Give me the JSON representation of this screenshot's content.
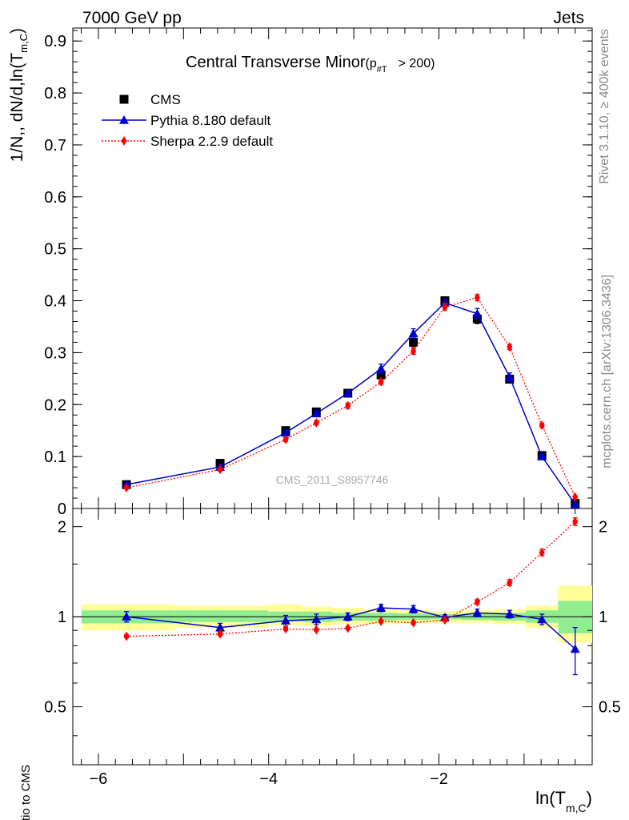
{
  "header": {
    "energy_label": "7000 GeV pp",
    "process_label": "Jets",
    "title_main": "Central Transverse Minor",
    "title_cut": "(p",
    "title_cut_sub": "#T",
    "title_cut_tail": "> 200)",
    "watermark": "CMS_2011_S8957746",
    "side_rivet": "Rivet 3.1.10, ≥ 400k events",
    "side_mcplots": "mcplots.cern.ch [arXiv:1306.3436]"
  },
  "chart_data": [
    {
      "type": "line",
      "panel": "main",
      "ylabel_prefix": "1/N",
      "ylabel_mid": ",, dN/d,ln(T",
      "ylabel_sub": "m,C",
      "ylabel_suffix": ")",
      "xlabel_main": "ln(T",
      "xlabel_sub": "m,C",
      "xlabel_suffix": ")",
      "xlim": [
        -6.3,
        -0.2
      ],
      "ylim": [
        0,
        0.925
      ],
      "yticks": [
        0,
        0.1,
        0.2,
        0.3,
        0.4,
        0.5,
        0.6,
        0.7,
        0.8,
        0.9
      ],
      "ytick_labels": [
        "0",
        "0.1",
        "0.2",
        "0.3",
        "0.4",
        "0.5",
        "0.6",
        "0.7",
        "0.8",
        "0.9"
      ],
      "xticks": [
        -6,
        -4,
        -2
      ],
      "xtick_labels": [
        "−6",
        "−4",
        "−2"
      ],
      "legend_position": "top-left",
      "series": [
        {
          "name": "CMS",
          "color": "#000000",
          "marker": "square",
          "x": [
            -5.67,
            -4.57,
            -3.8,
            -3.44,
            -3.07,
            -2.68,
            -2.3,
            -1.93,
            -1.55,
            -1.17,
            -0.79,
            -0.4
          ],
          "y": [
            0.046,
            0.087,
            0.15,
            0.186,
            0.222,
            0.257,
            0.32,
            0.4,
            0.365,
            0.249,
            0.102,
            0.01
          ],
          "err": [
            0.004,
            0.004,
            0.005,
            0.006,
            0.006,
            0.007,
            0.008,
            0.006,
            0.009,
            0.006,
            0.004,
            0.003
          ]
        },
        {
          "name": "Pythia 8.180 default",
          "color": "#0000cc",
          "marker": "triangle",
          "x": [
            -5.67,
            -4.57,
            -3.8,
            -3.44,
            -3.07,
            -2.68,
            -2.3,
            -1.93,
            -1.55,
            -1.17,
            -0.79,
            -0.4
          ],
          "y": [
            0.046,
            0.08,
            0.146,
            0.183,
            0.222,
            0.269,
            0.337,
            0.396,
            0.375,
            0.253,
            0.1,
            0.008
          ],
          "err": [
            0.003,
            0.003,
            0.005,
            0.005,
            0.006,
            0.009,
            0.009,
            0.008,
            0.01,
            0.008,
            0.004,
            0.002
          ]
        },
        {
          "name": "Sherpa 2.2.9 default",
          "color": "#ff0000",
          "marker": "diamond",
          "x": [
            -5.67,
            -4.57,
            -3.8,
            -3.44,
            -3.07,
            -2.68,
            -2.3,
            -1.93,
            -1.55,
            -1.17,
            -0.79,
            -0.4
          ],
          "y": [
            0.04,
            0.075,
            0.133,
            0.165,
            0.198,
            0.244,
            0.303,
            0.388,
            0.406,
            0.311,
            0.16,
            0.022
          ],
          "err": [
            0.002,
            0.003,
            0.004,
            0.004,
            0.005,
            0.005,
            0.006,
            0.006,
            0.006,
            0.005,
            0.004,
            0.002
          ]
        }
      ]
    },
    {
      "type": "line",
      "panel": "ratio",
      "ylabel": "Ratio to CMS",
      "xlim": [
        -6.3,
        -0.2
      ],
      "ylim": [
        0.32,
        2.3
      ],
      "scale": "log",
      "yticks": [
        0.5,
        1,
        2
      ],
      "ytick_labels": [
        "0.5",
        "1",
        "2"
      ],
      "band_edges": [
        -6.3,
        -5.1,
        -4.0,
        -3.6,
        -3.25,
        -2.88,
        -2.48,
        -2.11,
        -1.74,
        -1.37,
        -0.98,
        -0.6,
        -0.2
      ],
      "band_inner": [
        [
          0.95,
          1.05
        ],
        [
          0.96,
          1.05
        ],
        [
          0.965,
          1.04
        ],
        [
          0.96,
          1.04
        ],
        [
          0.97,
          1.03
        ],
        [
          0.97,
          1.03
        ],
        [
          0.975,
          1.025
        ],
        [
          0.98,
          1.02
        ],
        [
          0.975,
          1.025
        ],
        [
          0.97,
          1.03
        ],
        [
          0.955,
          1.05
        ],
        [
          0.88,
          1.13
        ]
      ],
      "band_outer": [
        [
          0.9,
          1.1
        ],
        [
          0.92,
          1.09
        ],
        [
          0.935,
          1.1
        ],
        [
          0.93,
          1.08
        ],
        [
          0.94,
          1.07
        ],
        [
          0.945,
          1.06
        ],
        [
          0.95,
          1.05
        ],
        [
          0.955,
          1.045
        ],
        [
          0.955,
          1.05
        ],
        [
          0.945,
          1.06
        ],
        [
          0.915,
          1.09
        ],
        [
          0.82,
          1.27
        ]
      ],
      "band_colors": {
        "inner": "#90ee90",
        "outer": "#ffff99"
      },
      "series": [
        {
          "name": "Pythia 8.180 default",
          "color": "#0000cc",
          "marker": "triangle",
          "x": [
            -5.67,
            -4.57,
            -3.8,
            -3.44,
            -3.07,
            -2.68,
            -2.3,
            -1.93,
            -1.55,
            -1.17,
            -0.79,
            -0.4
          ],
          "y": [
            1.0,
            0.92,
            0.97,
            0.98,
            1.0,
            1.07,
            1.06,
            0.995,
            1.03,
            1.02,
            0.98,
            0.78
          ],
          "err": [
            0.04,
            0.03,
            0.04,
            0.04,
            0.03,
            0.03,
            0.03,
            0.02,
            0.03,
            0.03,
            0.04,
            0.14
          ]
        },
        {
          "name": "Sherpa 2.2.9 default",
          "color": "#ff0000",
          "marker": "diamond",
          "x": [
            -5.67,
            -4.57,
            -3.8,
            -3.44,
            -3.07,
            -2.68,
            -2.3,
            -1.93,
            -1.55,
            -1.17,
            -0.79,
            -0.4
          ],
          "y": [
            0.86,
            0.875,
            0.91,
            0.905,
            0.915,
            0.965,
            0.955,
            0.975,
            1.12,
            1.3,
            1.64,
            2.08
          ],
          "err": [
            0.01,
            0.01,
            0.01,
            0.01,
            0.01,
            0.01,
            0.01,
            0.01,
            0.02,
            0.03,
            0.04,
            0.06
          ]
        }
      ]
    }
  ]
}
